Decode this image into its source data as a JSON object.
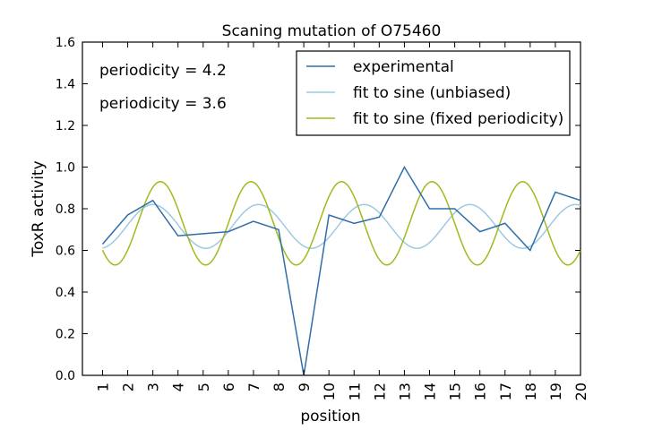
{
  "chart_data": {
    "type": "line",
    "title": "Scaning mutation of O75460",
    "xlabel": "position",
    "ylabel": "ToxR activity",
    "xlim": [
      0.2,
      20
    ],
    "ylim": [
      0.0,
      1.6
    ],
    "x_ticks": [
      1,
      2,
      3,
      4,
      5,
      6,
      7,
      8,
      9,
      10,
      11,
      12,
      13,
      14,
      15,
      16,
      17,
      18,
      19,
      20
    ],
    "y_ticks": [
      "0.0",
      "0.2",
      "0.4",
      "0.6",
      "0.8",
      "1.0",
      "1.2",
      "1.4",
      "1.6"
    ],
    "grid": false,
    "legend_position": "top-right",
    "annotations": [
      {
        "text": "periodicity = 4.2",
        "color": "#9ecae1"
      },
      {
        "text": "periodicity = 3.6",
        "color": "#a2b91e"
      }
    ],
    "series": [
      {
        "name": "experimental",
        "color": "#2f6ea8",
        "x": [
          1,
          2,
          3,
          4,
          5,
          6,
          7,
          8,
          9,
          10,
          11,
          12,
          13,
          14,
          15,
          16,
          17,
          18,
          19,
          20
        ],
        "values": [
          0.63,
          0.77,
          0.84,
          0.67,
          0.68,
          0.69,
          0.74,
          0.7,
          0.0,
          0.77,
          0.73,
          0.76,
          1.0,
          0.8,
          0.8,
          0.69,
          0.73,
          0.6,
          0.88,
          0.84
        ]
      },
      {
        "name": "fit to sine (unbiased)",
        "color": "#9ecae1",
        "sine": {
          "mean": 0.715,
          "amplitude": 0.105,
          "period": 4.2,
          "peak_x": 3.0
        },
        "x_range": [
          1,
          20
        ]
      },
      {
        "name": "fit to sine (fixed periodicity)",
        "color": "#a2b91e",
        "sine": {
          "mean": 0.73,
          "amplitude": 0.2,
          "period": 3.6,
          "peak_x": 3.3
        },
        "x_range": [
          1,
          20
        ]
      }
    ]
  }
}
